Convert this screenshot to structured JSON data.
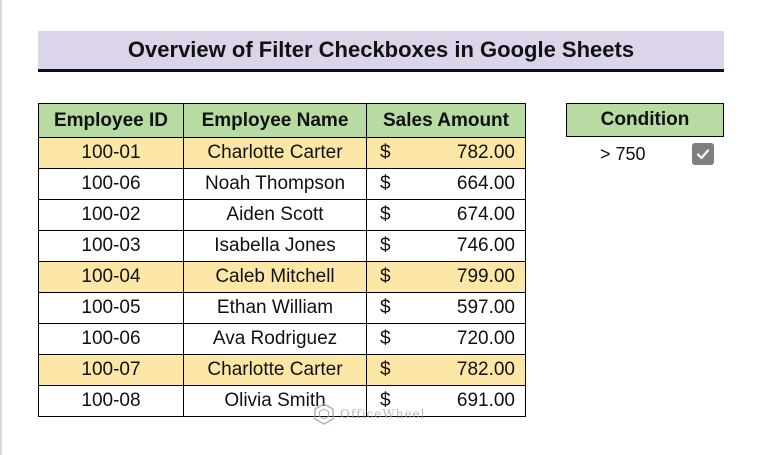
{
  "title": "Overview of Filter Checkboxes in Google Sheets",
  "table": {
    "headers": [
      "Employee ID",
      "Employee Name",
      "Sales Amount"
    ],
    "rows": [
      {
        "id": "100-01",
        "name": "Charlotte Carter",
        "currency": "$",
        "amount": "782.00",
        "highlighted": true
      },
      {
        "id": "100-06",
        "name": "Noah Thompson",
        "currency": "$",
        "amount": "664.00",
        "highlighted": false
      },
      {
        "id": "100-02",
        "name": "Aiden Scott",
        "currency": "$",
        "amount": "674.00",
        "highlighted": false
      },
      {
        "id": "100-03",
        "name": "Isabella Jones",
        "currency": "$",
        "amount": "746.00",
        "highlighted": false
      },
      {
        "id": "100-04",
        "name": "Caleb Mitchell",
        "currency": "$",
        "amount": "799.00",
        "highlighted": true
      },
      {
        "id": "100-05",
        "name": "Ethan William",
        "currency": "$",
        "amount": "597.00",
        "highlighted": false
      },
      {
        "id": "100-06",
        "name": "Ava Rodriguez",
        "currency": "$",
        "amount": "720.00",
        "highlighted": false
      },
      {
        "id": "100-07",
        "name": "Charlotte Carter",
        "currency": "$",
        "amount": "782.00",
        "highlighted": true
      },
      {
        "id": "100-08",
        "name": "Olivia Smith",
        "currency": "$",
        "amount": "691.00",
        "highlighted": false
      }
    ]
  },
  "condition": {
    "header": "Condition",
    "value": "> 750",
    "checked": true
  },
  "watermark": "OfficeWheel",
  "colors": {
    "title_bg": "#dcd5ea",
    "header_bg": "#b7dba3",
    "highlight_bg": "#fde7a7",
    "checkbox_bg": "#7f7f7f"
  }
}
